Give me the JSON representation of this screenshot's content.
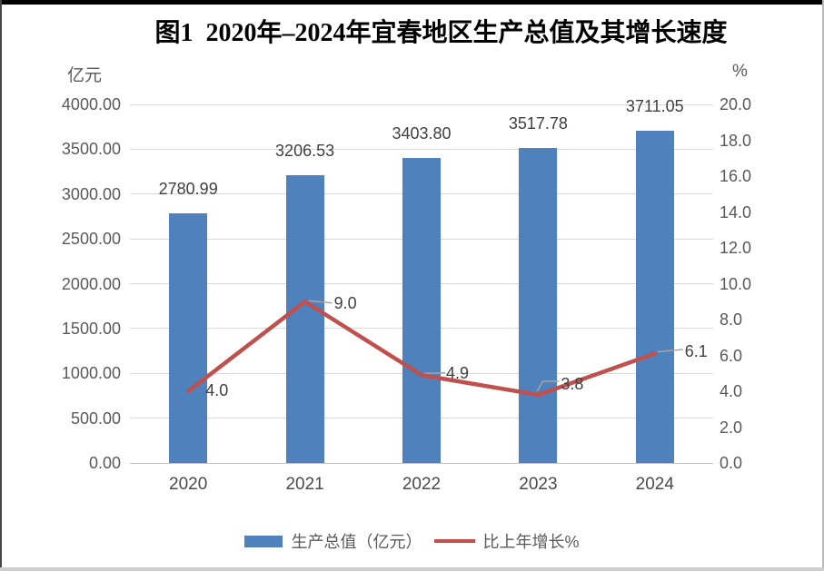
{
  "title": "图1  2020年–2024年宜春地区生产总值及其增长速度",
  "chart_data": {
    "type": "combo-bar-line",
    "title": "图1 2020年–2024年宜春地区生产总值及其增长速度",
    "categories": [
      "2020",
      "2021",
      "2022",
      "2023",
      "2024"
    ],
    "series": [
      {
        "name": "生产总值（亿元）",
        "type": "bar",
        "axis": "left",
        "color": "#4F81BD",
        "values": [
          2780.99,
          3206.53,
          3403.8,
          3517.78,
          3711.05
        ],
        "labels": [
          "2780.99",
          "3206.53",
          "3403.80",
          "3517.78",
          "3711.05"
        ]
      },
      {
        "name": "比上年增长%",
        "type": "line",
        "axis": "right",
        "color": "#C0504D",
        "values": [
          4.0,
          9.0,
          4.9,
          3.8,
          6.1
        ],
        "labels": [
          "4.0",
          "9.0",
          "4.9",
          "3.8",
          "6.1"
        ]
      }
    ],
    "left_axis": {
      "unit": "亿元",
      "min": 0,
      "max": 4000,
      "step": 500,
      "tick_labels": [
        "4000.00",
        "3500.00",
        "3000.00",
        "2500.00",
        "2000.00",
        "1500.00",
        "1000.00",
        "500.00",
        "0.00"
      ]
    },
    "right_axis": {
      "unit": "%",
      "min": 0,
      "max": 20,
      "step": 2,
      "tick_labels": [
        "20.0",
        "18.0",
        "16.0",
        "14.0",
        "12.0",
        "10.0",
        "8.0",
        "6.0",
        "4.0",
        "2.0",
        "0.0"
      ]
    },
    "grid": true,
    "legend_position": "bottom",
    "colors": {
      "grid": "#D9D9D9",
      "axis_text": "#595959",
      "data_label": "#3F3F3F",
      "leader_line": "#A6A6A6"
    }
  },
  "legend": [
    {
      "label": "生产总值（亿元）",
      "swatch": "bar"
    },
    {
      "label": "比上年增长%",
      "swatch": "line"
    }
  ]
}
